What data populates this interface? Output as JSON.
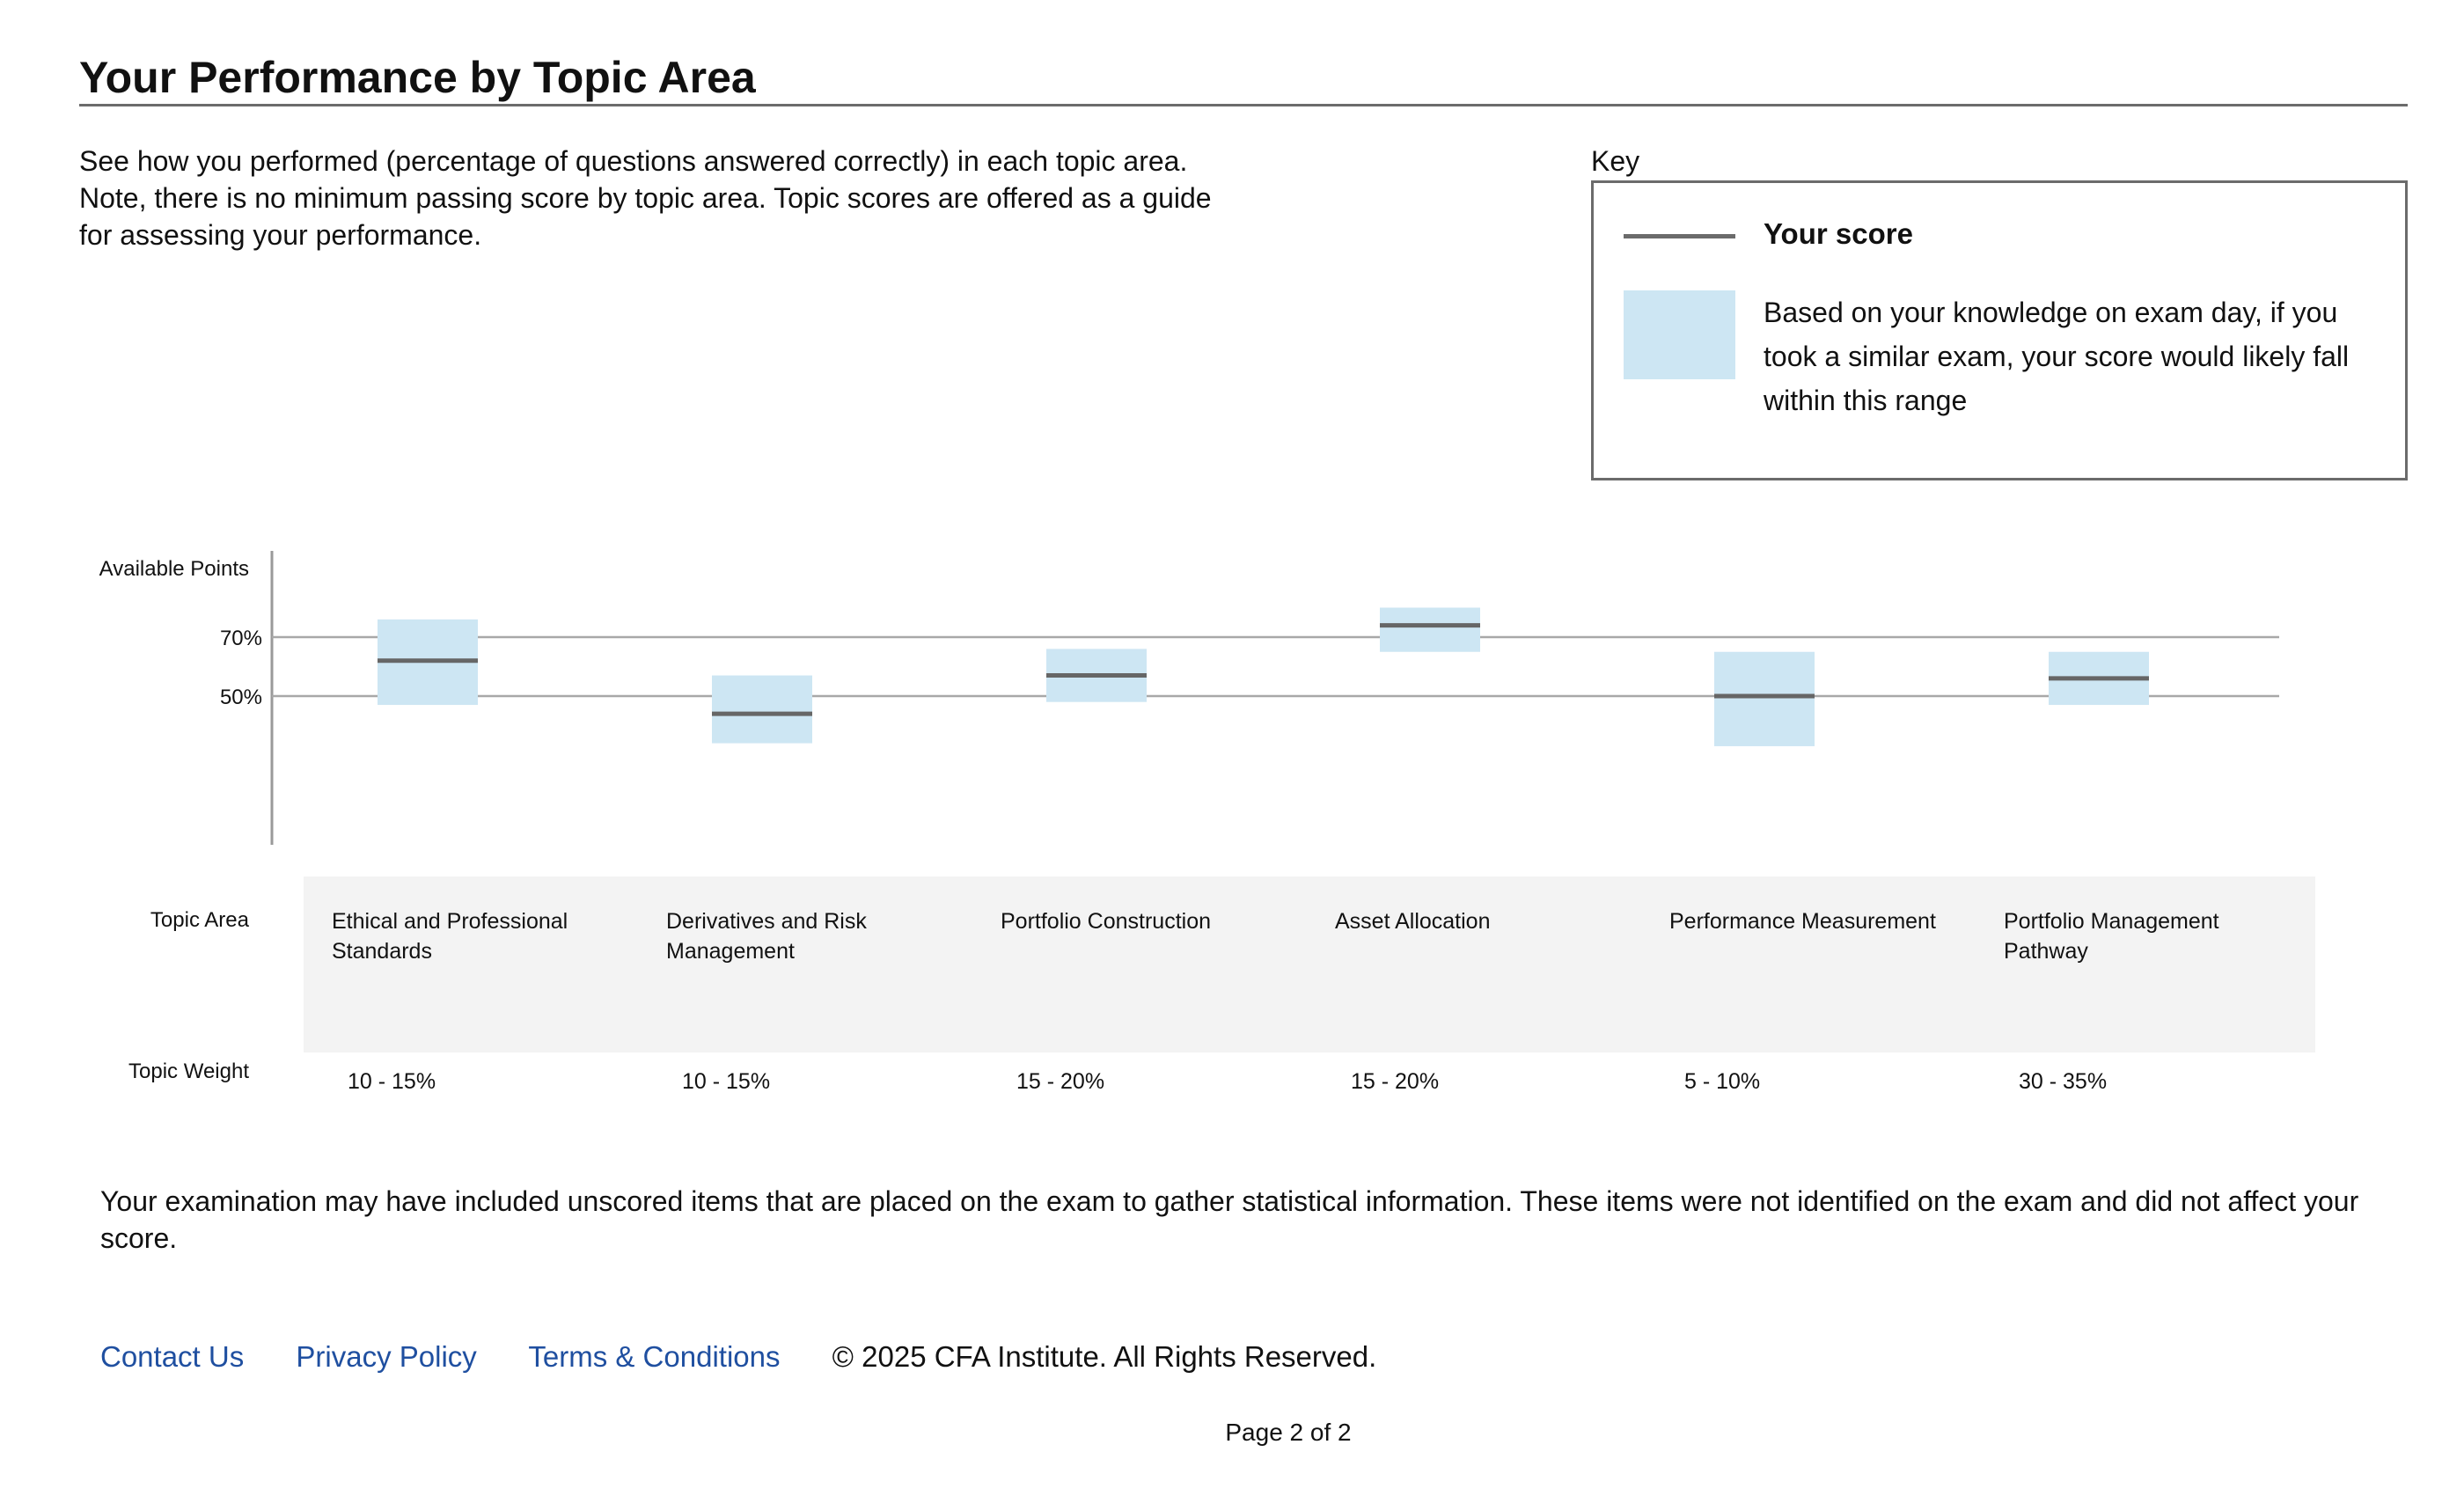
{
  "title": "Your Performance by Topic Area",
  "intro": "See how you performed (percentage of questions answered correctly) in each topic area. Note, there is no minimum passing score by topic area. Topic scores are offered as a guide for assessing your performance.",
  "key": {
    "label": "Key",
    "score_label": "Your score",
    "range_label": "Based on your knowledge on exam day, if you took a similar exam, your score would likely fall within this range"
  },
  "colors": {
    "range": "#cde6f3",
    "score_line": "#666666",
    "link": "#1f4fa0",
    "panel": "#f3f3f3"
  },
  "row_labels": {
    "available_points": "Available Points",
    "topic_area": "Topic Area",
    "topic_weight": "Topic Weight"
  },
  "chart_data": {
    "type": "range",
    "ylabel": "Available Points",
    "ytick_labels": [
      "70%",
      "50%"
    ],
    "reference_lines": [
      70,
      50
    ],
    "ylim": [
      20,
      80
    ],
    "categories": [
      "Ethical and Professional Standards",
      "Derivatives and Risk Management",
      "Portfolio Construction",
      "Asset Allocation",
      "Performance Measurement",
      "Portfolio Management Pathway"
    ],
    "weights": [
      "10 - 15%",
      "10 - 15%",
      "15 - 20%",
      "15 - 20%",
      "5 - 10%",
      "30 - 35%"
    ],
    "score": [
      62,
      44,
      57,
      74,
      50,
      56
    ],
    "range_low": [
      47,
      34,
      48,
      65,
      33,
      47
    ],
    "range_high": [
      76,
      57,
      66,
      80,
      65,
      65
    ]
  },
  "note": "Your examination may have included unscored items that are placed on the exam to gather statistical information. These items were not identified on the exam and did not affect your score.",
  "footer": {
    "links": [
      "Contact Us",
      "Privacy Policy",
      "Terms & Conditions"
    ],
    "copyright": "© 2025 CFA Institute. All Rights Reserved."
  },
  "page": "Page 2 of 2"
}
